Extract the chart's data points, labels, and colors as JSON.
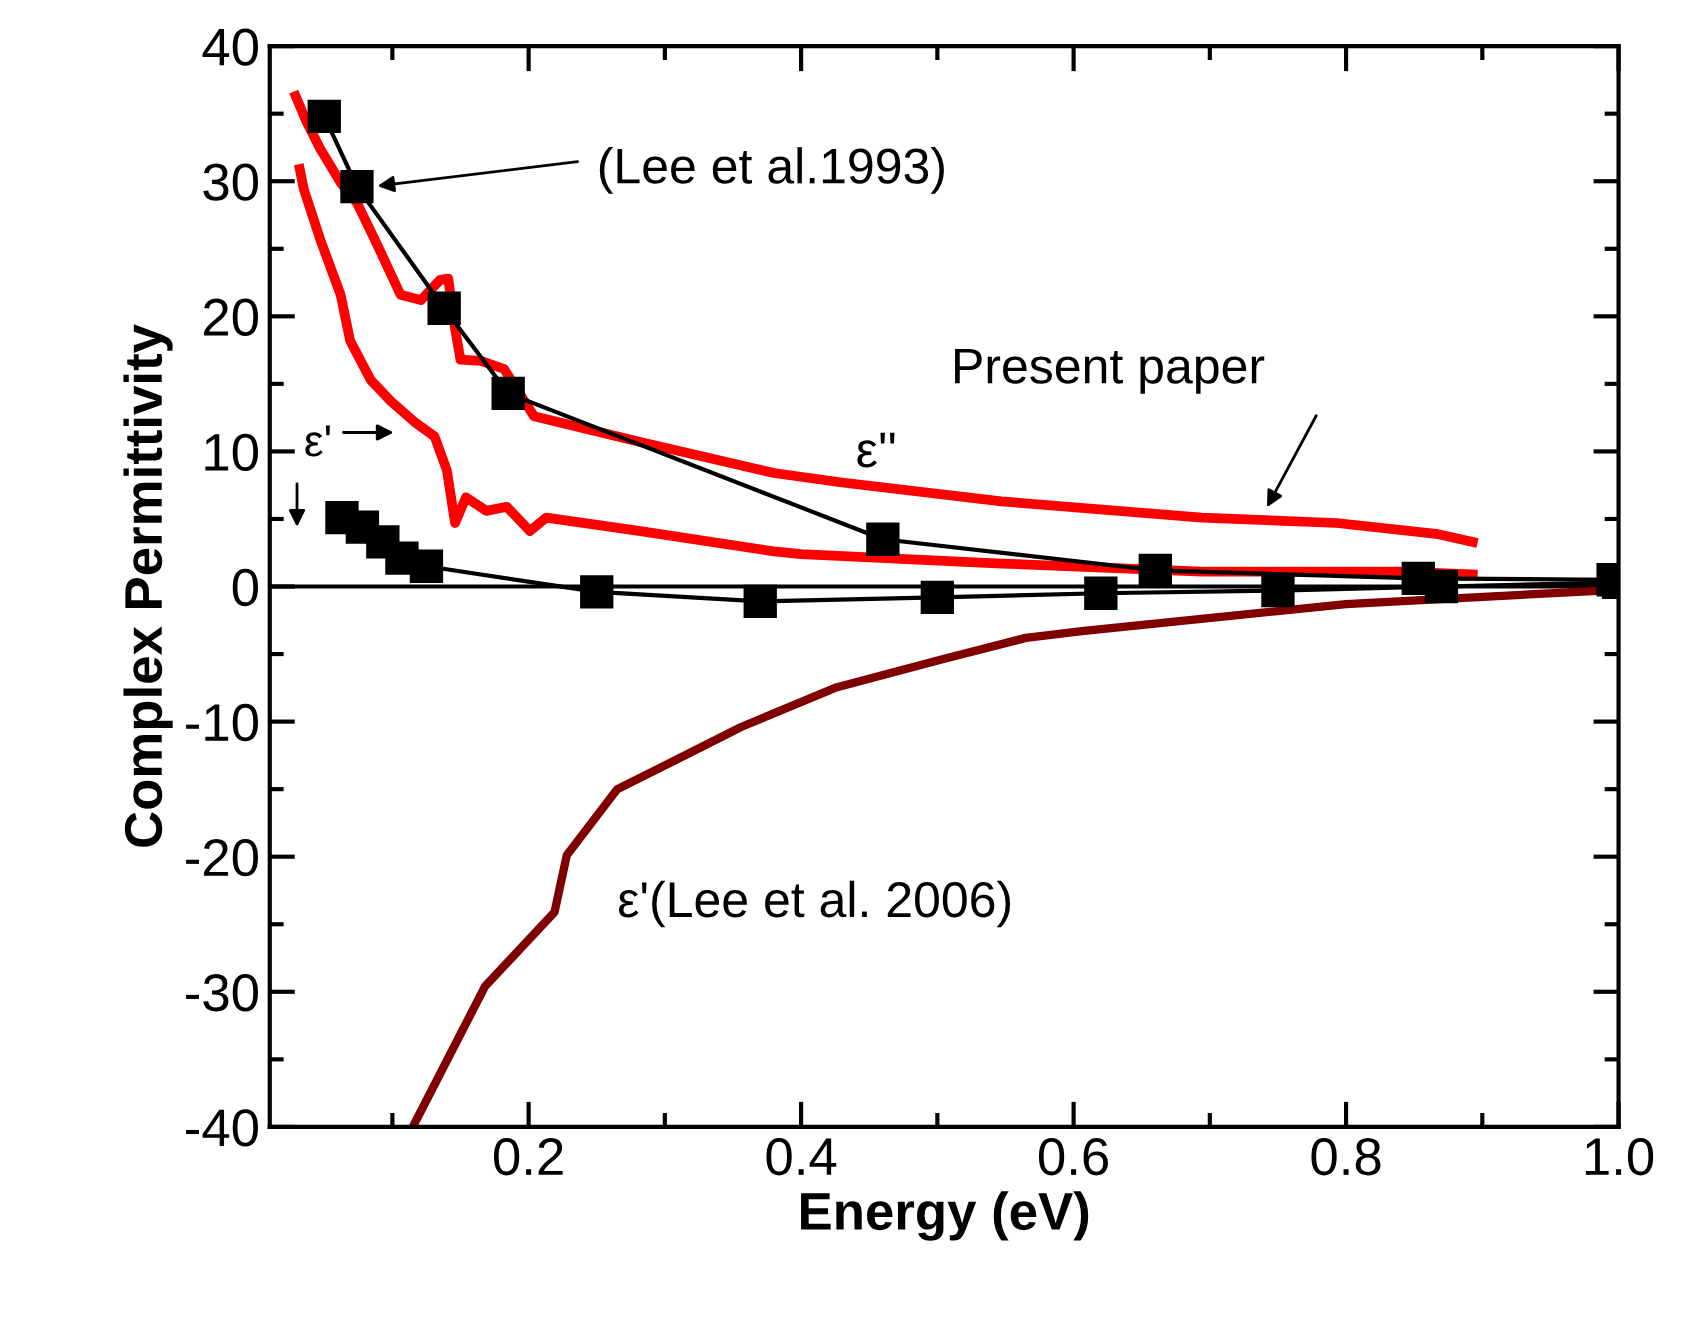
{
  "chart_data": {
    "type": "line",
    "xlabel": "Energy (eV)",
    "ylabel": "Complex Permittivity",
    "xlim": [
      0.01,
      1.0
    ],
    "xticks": [
      0.2,
      0.4,
      0.6,
      0.8,
      {
        "value": 1.0,
        "label": "1.0"
      }
    ],
    "ylim": [
      -40,
      40
    ],
    "yticks": [
      -40,
      -30,
      -20,
      -10,
      0,
      10,
      20,
      30,
      40
    ],
    "grid": false,
    "series": [
      {
        "color": "#ff0000",
        "x": [
          0.029,
          0.037,
          0.047,
          0.062,
          0.074,
          0.087,
          0.106,
          0.121,
          0.135,
          0.141,
          0.146,
          0.15,
          0.165,
          0.182,
          0.197,
          0.204,
          0.282,
          0.38,
          0.43,
          0.547,
          0.694,
          0.793,
          0.866,
          0.893
        ],
        "values": [
          36.3,
          34.4,
          32.4,
          29.9,
          28.4,
          25.7,
          21.6,
          21.2,
          22.7,
          22.8,
          19.1,
          16.8,
          16.7,
          16.1,
          13.7,
          12.6,
          10.7,
          8.4,
          7.7,
          6.3,
          5.1,
          4.7,
          3.9,
          3.3
        ],
        "marker": "none"
      },
      {
        "color": "#ff0000",
        "x": [
          0.032,
          0.035,
          0.047,
          0.062,
          0.069,
          0.084,
          0.099,
          0.116,
          0.131,
          0.14,
          0.146,
          0.154,
          0.169,
          0.184,
          0.201,
          0.213,
          0.282,
          0.38,
          0.4,
          0.547,
          0.694,
          0.841,
          0.893
        ],
        "values": [
          30.9,
          29.4,
          25.7,
          21.6,
          18.2,
          15.3,
          13.7,
          12.2,
          11.1,
          8.6,
          4.7,
          6.6,
          5.6,
          5.9,
          4.1,
          5.1,
          4.1,
          2.6,
          2.4,
          1.7,
          1.1,
          1.1,
          0.9
        ],
        "marker": "none"
      },
      {
        "color": "#000000",
        "x": [
          0.05,
          0.074,
          0.138,
          0.185,
          0.46,
          0.66,
          0.853,
          0.996
        ],
        "values": [
          34.8,
          29.6,
          20.6,
          14.3,
          3.5,
          1.2,
          0.6,
          0.5
        ],
        "marker": "square"
      },
      {
        "color": "#000000",
        "x": [
          0.063,
          0.078,
          0.093,
          0.107,
          0.125,
          0.25,
          0.37,
          0.5,
          0.62,
          0.75,
          0.87,
          1.0
        ],
        "values": [
          5.1,
          4.4,
          3.3,
          2.1,
          1.5,
          -0.4,
          -1.1,
          -0.8,
          -0.5,
          -0.3,
          0.0,
          0.3
        ],
        "marker": "square"
      },
      {
        "color": "#800000",
        "x": [
          0.116,
          0.168,
          0.219,
          0.228,
          0.265,
          0.301,
          0.356,
          0.425,
          0.503,
          0.565,
          0.606,
          0.8,
          0.988,
          1.0
        ],
        "values": [
          -39.8,
          -29.6,
          -24.1,
          -19.9,
          -15.0,
          -13.2,
          -10.4,
          -7.5,
          -5.4,
          -3.8,
          -3.3,
          -1.3,
          -0.3,
          -0.2
        ],
        "marker": "none"
      }
    ],
    "ref_lines": [
      {
        "axis": "y",
        "value": 0,
        "color": "#000000"
      }
    ],
    "annotations": [
      "(Lee et al.1993)",
      "Present paper",
      "ε''",
      "ε'",
      "ε'(Lee et al. 2006)"
    ]
  }
}
